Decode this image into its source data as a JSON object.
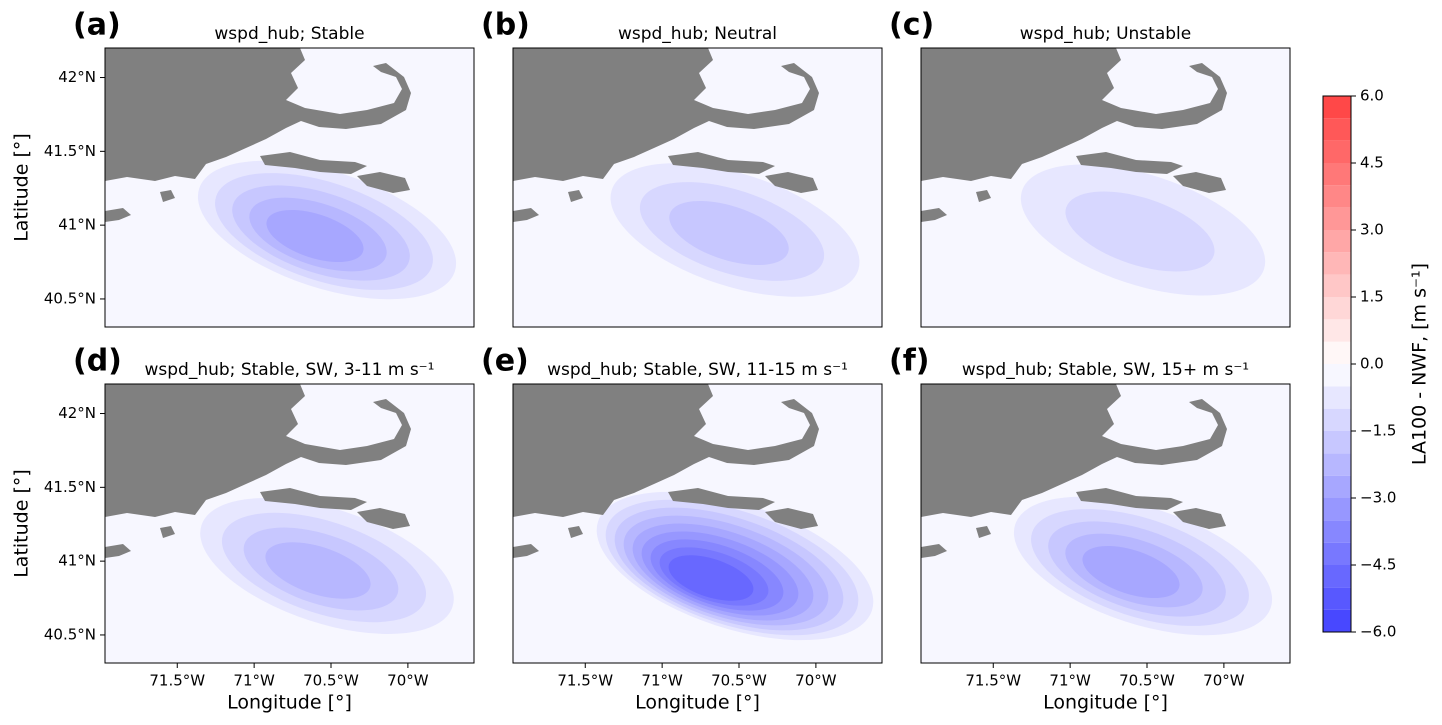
{
  "panels": [
    {
      "label": "(a)",
      "title": "wspd_hub; Stable",
      "wake_min": -3.0
    },
    {
      "label": "(b)",
      "title": "wspd_hub; Neutral",
      "wake_min": -2.0
    },
    {
      "label": "(c)",
      "title": "wspd_hub; Unstable",
      "wake_min": -1.5
    },
    {
      "label": "(d)",
      "title": "wspd_hub; Stable, SW, 3-11 m s⁻¹",
      "wake_min": -2.5
    },
    {
      "label": "(e)",
      "title": "wspd_hub; Stable, SW, 11-15 m s⁻¹",
      "wake_min": -5.0
    },
    {
      "label": "(f)",
      "title": "wspd_hub; Stable, SW, 15+ m s⁻¹",
      "wake_min": -3.0
    }
  ],
  "field_background": -0.25,
  "axes": {
    "xlabel": "Longitude [°]",
    "ylabel": "Latitude [°]",
    "xlim": [
      -71.97,
      -69.57
    ],
    "ylim": [
      40.31,
      42.2
    ],
    "xticks": [
      {
        "value": -71.5,
        "label": "71.5°W"
      },
      {
        "value": -71,
        "label": "71°W"
      },
      {
        "value": -70.5,
        "label": "70.5°W"
      },
      {
        "value": -70,
        "label": "70°W"
      }
    ],
    "yticks": [
      {
        "value": 40.5,
        "label": "40.5°N"
      },
      {
        "value": 41,
        "label": "41°N"
      },
      {
        "value": 41.5,
        "label": "41.5°N"
      },
      {
        "value": 42,
        "label": "42°N"
      }
    ]
  },
  "colorbar": {
    "label": "LA100 - NWF,  [m s⁻¹]",
    "ylim": [
      -6,
      6
    ],
    "levels": [
      -6,
      -5.5,
      -5,
      -4.5,
      -4,
      -3.5,
      -3,
      -2.5,
      -2,
      -1.5,
      -1,
      -0.5,
      0,
      0.5,
      1,
      1.5,
      2,
      2.5,
      3,
      3.5,
      4,
      4.5,
      5,
      5.5,
      6
    ],
    "colormap": {
      "low": "#0000ff",
      "mid": "#ffffff",
      "high": "#ff0000",
      "alpha": 0.75
    },
    "ticks": [
      {
        "value": -6,
        "label": "−6.0"
      },
      {
        "value": -4.5,
        "label": "−4.5"
      },
      {
        "value": -3,
        "label": "−3.0"
      },
      {
        "value": -1.5,
        "label": "−1.5"
      },
      {
        "value": 0,
        "label": "0.0"
      },
      {
        "value": 1.5,
        "label": "1.5"
      },
      {
        "value": 3,
        "label": "3.0"
      },
      {
        "value": 4.5,
        "label": "4.5"
      },
      {
        "value": 6,
        "label": "6.0"
      }
    ]
  },
  "land_color": "#808080"
}
